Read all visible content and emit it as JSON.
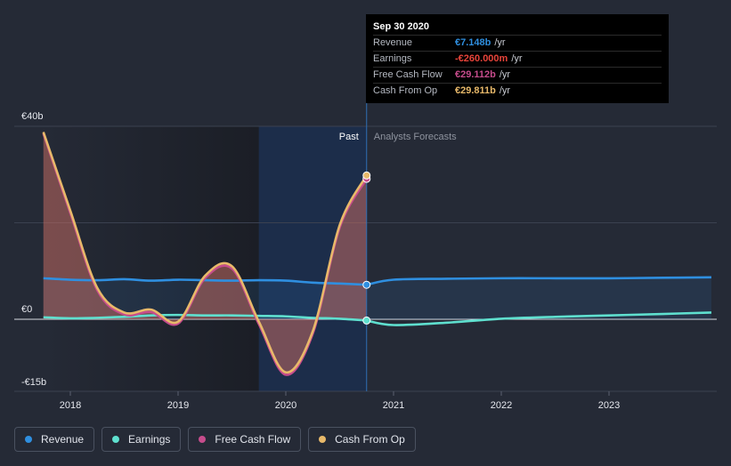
{
  "chart_data": {
    "type": "line",
    "x_ticks": [
      "2018",
      "2019",
      "2020",
      "2021",
      "2022",
      "2023"
    ],
    "y_ticks": [
      {
        "label": "€40b",
        "value": 40
      },
      {
        "label": "€0",
        "value": 0
      },
      {
        "label": "-€15b",
        "value": -15
      }
    ],
    "ylim": [
      -15,
      40
    ],
    "xlim": [
      2017.75,
      2023.95
    ],
    "past_label": "Past",
    "forecast_label": "Analysts Forecasts",
    "divider_x": 2020.75,
    "highlight_range": [
      2019.75,
      2020.75
    ],
    "colors": {
      "revenue": "#2f8fe0",
      "earnings": "#5fe0cf",
      "free_cash_flow": "#c64c8c",
      "cash_from_op": "#e8b96a"
    },
    "series": [
      {
        "name": "Revenue",
        "key": "revenue",
        "points": [
          [
            2017.75,
            8.5
          ],
          [
            2018.0,
            8.2
          ],
          [
            2018.25,
            8.1
          ],
          [
            2018.5,
            8.3
          ],
          [
            2018.75,
            8.0
          ],
          [
            2019.0,
            8.2
          ],
          [
            2019.25,
            8.1
          ],
          [
            2019.5,
            8.0
          ],
          [
            2019.75,
            8.1
          ],
          [
            2020.0,
            8.0
          ],
          [
            2020.25,
            7.6
          ],
          [
            2020.5,
            7.4
          ],
          [
            2020.75,
            7.148
          ]
        ],
        "forecast": [
          [
            2020.75,
            7.148
          ],
          [
            2021.0,
            8.2
          ],
          [
            2021.5,
            8.4
          ],
          [
            2022.0,
            8.5
          ],
          [
            2022.5,
            8.5
          ],
          [
            2023.0,
            8.5
          ],
          [
            2023.5,
            8.6
          ],
          [
            2023.95,
            8.7
          ]
        ]
      },
      {
        "name": "Earnings",
        "key": "earnings",
        "points": [
          [
            2017.75,
            0.4
          ],
          [
            2018.0,
            0.2
          ],
          [
            2018.25,
            0.3
          ],
          [
            2018.5,
            0.5
          ],
          [
            2018.75,
            0.8
          ],
          [
            2019.0,
            0.9
          ],
          [
            2019.25,
            0.8
          ],
          [
            2019.5,
            0.8
          ],
          [
            2019.75,
            0.7
          ],
          [
            2020.0,
            0.6
          ],
          [
            2020.25,
            0.3
          ],
          [
            2020.5,
            0.1
          ],
          [
            2020.75,
            -0.26
          ]
        ],
        "forecast": [
          [
            2020.75,
            -0.26
          ],
          [
            2021.0,
            -1.2
          ],
          [
            2021.5,
            -0.7
          ],
          [
            2022.0,
            0.1
          ],
          [
            2022.5,
            0.5
          ],
          [
            2023.0,
            0.8
          ],
          [
            2023.5,
            1.1
          ],
          [
            2023.95,
            1.4
          ]
        ]
      },
      {
        "name": "Free Cash Flow",
        "key": "free_cash_flow",
        "points": [
          [
            2017.75,
            38.5
          ],
          [
            2018.0,
            22.0
          ],
          [
            2018.25,
            6.0
          ],
          [
            2018.5,
            1.0
          ],
          [
            2018.75,
            1.5
          ],
          [
            2019.0,
            -0.9
          ],
          [
            2019.25,
            8.5
          ],
          [
            2019.5,
            10.5
          ],
          [
            2019.75,
            -1.0
          ],
          [
            2020.0,
            -11.5
          ],
          [
            2020.25,
            -3.0
          ],
          [
            2020.5,
            19.0
          ],
          [
            2020.75,
            29.112
          ]
        ]
      },
      {
        "name": "Cash From Op",
        "key": "cash_from_op",
        "points": [
          [
            2017.75,
            38.8
          ],
          [
            2018.0,
            22.5
          ],
          [
            2018.25,
            6.5
          ],
          [
            2018.5,
            1.4
          ],
          [
            2018.75,
            2.0
          ],
          [
            2019.0,
            -0.5
          ],
          [
            2019.25,
            9.0
          ],
          [
            2019.5,
            11.0
          ],
          [
            2019.75,
            -0.5
          ],
          [
            2020.0,
            -11.0
          ],
          [
            2020.25,
            -2.5
          ],
          [
            2020.5,
            19.5
          ],
          [
            2020.75,
            29.811
          ]
        ]
      }
    ]
  },
  "tooltip": {
    "date": "Sep 30 2020",
    "rows": [
      {
        "label": "Revenue",
        "value": "€7.148b",
        "unit": "/yr",
        "color": "#2f8fe0"
      },
      {
        "label": "Earnings",
        "value": "-€260.000m",
        "unit": "/yr",
        "color": "#e8443a"
      },
      {
        "label": "Free Cash Flow",
        "value": "€29.112b",
        "unit": "/yr",
        "color": "#c64c8c"
      },
      {
        "label": "Cash From Op",
        "value": "€29.811b",
        "unit": "/yr",
        "color": "#e8b96a"
      }
    ]
  },
  "legend": [
    {
      "label": "Revenue",
      "color": "#2f8fe0"
    },
    {
      "label": "Earnings",
      "color": "#5fe0cf"
    },
    {
      "label": "Free Cash Flow",
      "color": "#c64c8c"
    },
    {
      "label": "Cash From Op",
      "color": "#e8b96a"
    }
  ]
}
